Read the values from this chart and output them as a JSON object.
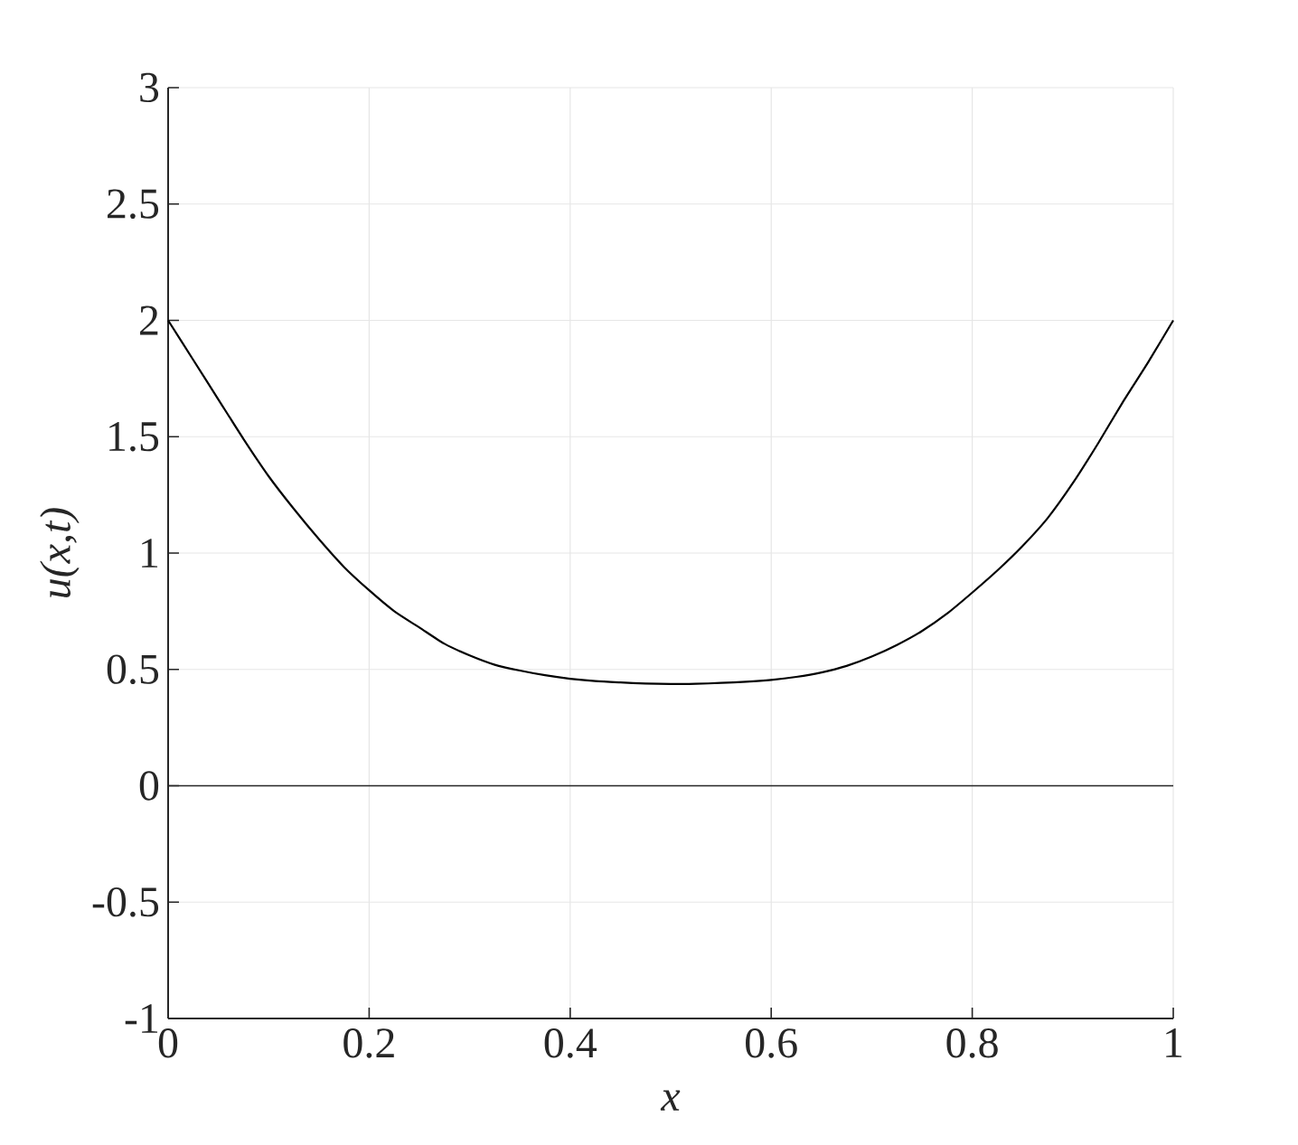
{
  "chart_data": {
    "type": "line",
    "xlabel": "x",
    "ylabel": "u(x,t)",
    "x": [
      0,
      0.025,
      0.05,
      0.075,
      0.1,
      0.125,
      0.15,
      0.175,
      0.2,
      0.225,
      0.25,
      0.275,
      0.3,
      0.325,
      0.35,
      0.375,
      0.4,
      0.425,
      0.45,
      0.475,
      0.5,
      0.525,
      0.55,
      0.575,
      0.6,
      0.625,
      0.65,
      0.675,
      0.7,
      0.725,
      0.75,
      0.775,
      0.8,
      0.825,
      0.85,
      0.875,
      0.9,
      0.925,
      0.95,
      0.975,
      1
    ],
    "values": [
      2.0,
      1.83,
      1.66,
      1.49,
      1.33,
      1.19,
      1.06,
      0.94,
      0.84,
      0.75,
      0.68,
      0.61,
      0.56,
      0.52,
      0.495,
      0.475,
      0.46,
      0.45,
      0.444,
      0.439,
      0.437,
      0.438,
      0.442,
      0.447,
      0.455,
      0.468,
      0.487,
      0.515,
      0.555,
      0.605,
      0.665,
      0.74,
      0.83,
      0.925,
      1.03,
      1.15,
      1.3,
      1.47,
      1.65,
      1.82,
      2.0
    ],
    "color": "#000000",
    "xlim": [
      0,
      1
    ],
    "ylim": [
      -1,
      3
    ],
    "xticks": [
      0,
      0.2,
      0.4,
      0.6,
      0.8,
      1
    ],
    "yticks": [
      -1,
      -0.5,
      0,
      0.5,
      1,
      1.5,
      2,
      2.5,
      3
    ],
    "grid": true,
    "ref_lines": [
      {
        "axis": "y",
        "value": 0,
        "color": "#262626"
      }
    ]
  }
}
